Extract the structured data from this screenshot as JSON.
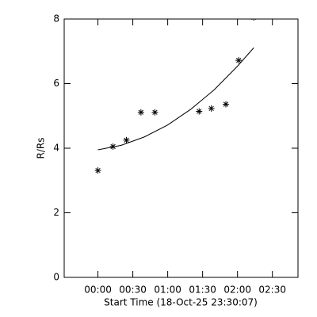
{
  "chart_data": {
    "type": "scatter",
    "xlabel": "Start Time (18-Oct-25 23:30:07)",
    "ylabel": "R/Rs",
    "xlim": [
      -29,
      172
    ],
    "ylim": [
      0,
      8
    ],
    "xticks": [
      {
        "value": 0,
        "label": "00:00"
      },
      {
        "value": 30,
        "label": "00:30"
      },
      {
        "value": 60,
        "label": "01:00"
      },
      {
        "value": 90,
        "label": "01:30"
      },
      {
        "value": 120,
        "label": "02:00"
      },
      {
        "value": 150,
        "label": "02:30"
      }
    ],
    "yticks": [
      0,
      2,
      4,
      6,
      8
    ],
    "series": [
      {
        "style": "asterisk",
        "color": "#000000",
        "x": [
          0,
          13,
          24.5,
          37,
          49,
          87,
          97.5,
          110,
          121,
          134
        ],
        "values": [
          3.31,
          4.05,
          4.25,
          5.11,
          5.11,
          5.14,
          5.23,
          5.36,
          6.72,
          8.05
        ]
      },
      {
        "style": "line",
        "color": "#000000",
        "x": [
          0,
          20,
          40,
          60,
          80,
          100,
          120,
          134
        ],
        "values": [
          3.95,
          4.09,
          4.35,
          4.72,
          5.21,
          5.81,
          6.54,
          7.11
        ]
      }
    ]
  }
}
